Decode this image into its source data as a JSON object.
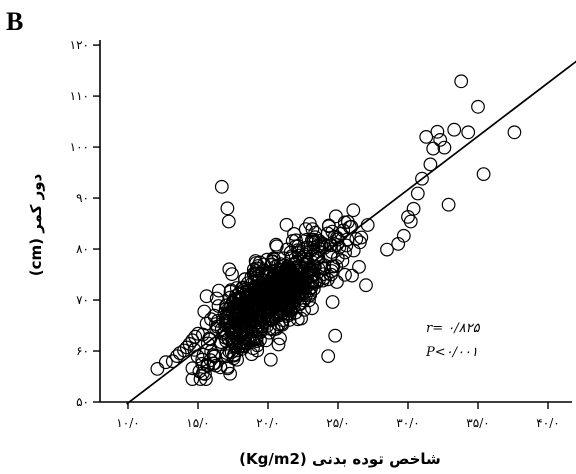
{
  "chart_data": {
    "type": "scatter",
    "panel_label": "B",
    "xlabel": "(Kg/m2) شاخص توده بدنی",
    "ylabel": "(cm)  دور کمر",
    "xlim": [
      8,
      42
    ],
    "ylim": [
      50,
      121
    ],
    "x_ticks": [
      10,
      15,
      20,
      25,
      30,
      35,
      40
    ],
    "x_tick_labels": [
      "۱۰/۰",
      "۱۵/۰",
      "۲۰/۰",
      "۲۵/۰",
      "۳۰/۰",
      "۳۵/۰",
      "۴۰/۰"
    ],
    "y_ticks": [
      50,
      60,
      70,
      80,
      90,
      100,
      110,
      120
    ],
    "y_tick_labels": [
      "۵۰",
      "۶۰",
      "۷۰",
      "۸۰",
      "۹۰",
      "۱۰۰",
      "۱۱۰",
      "۱۲۰"
    ],
    "annotations": [
      "r= ۰/۸۲۵",
      "P<۰/۰۰۱"
    ],
    "regression_line": {
      "x": [
        9.9,
        42.3
      ],
      "y": [
        49.6,
        117.4
      ]
    },
    "series": [
      {
        "marker": "open-circle",
        "x": [
          12.1,
          12.7,
          13.2,
          13.5,
          13.7,
          14.0,
          14.2,
          14.4,
          14.6,
          14.8,
          15.0,
          15.1,
          15.3,
          15.5,
          15.7,
          15.9,
          16.1,
          16.3,
          16.6,
          17.0,
          17.2,
          17.5,
          20.2,
          24.3,
          24.8,
          26.0,
          26.5,
          27.0,
          28.5,
          29.3,
          29.7,
          30.0,
          30.2,
          30.4,
          30.7,
          31.0,
          31.3,
          31.6,
          31.8,
          32.1,
          32.3,
          32.6,
          32.9,
          33.3,
          33.8,
          34.3,
          35.0,
          35.4,
          37.6,
          16.7,
          17.1,
          17.2
        ],
        "y": [
          56.5,
          57.8,
          58.0,
          59.0,
          59.6,
          60.1,
          60.7,
          61.4,
          62.1,
          62.8,
          63.4,
          56.0,
          57.5,
          55.5,
          61.5,
          58.2,
          59.2,
          64.3,
          56.8,
          66.4,
          65.5,
          67.5,
          58.3,
          59.0,
          63.0,
          74.8,
          76.5,
          72.9,
          79.9,
          81.0,
          82.6,
          86.3,
          85.4,
          87.9,
          90.9,
          93.8,
          102.0,
          96.6,
          99.7,
          103.0,
          101.4,
          99.9,
          88.7,
          103.4,
          112.9,
          102.9,
          107.9,
          94.7,
          102.9,
          92.2,
          88.0,
          85.4
        ]
      }
    ]
  }
}
